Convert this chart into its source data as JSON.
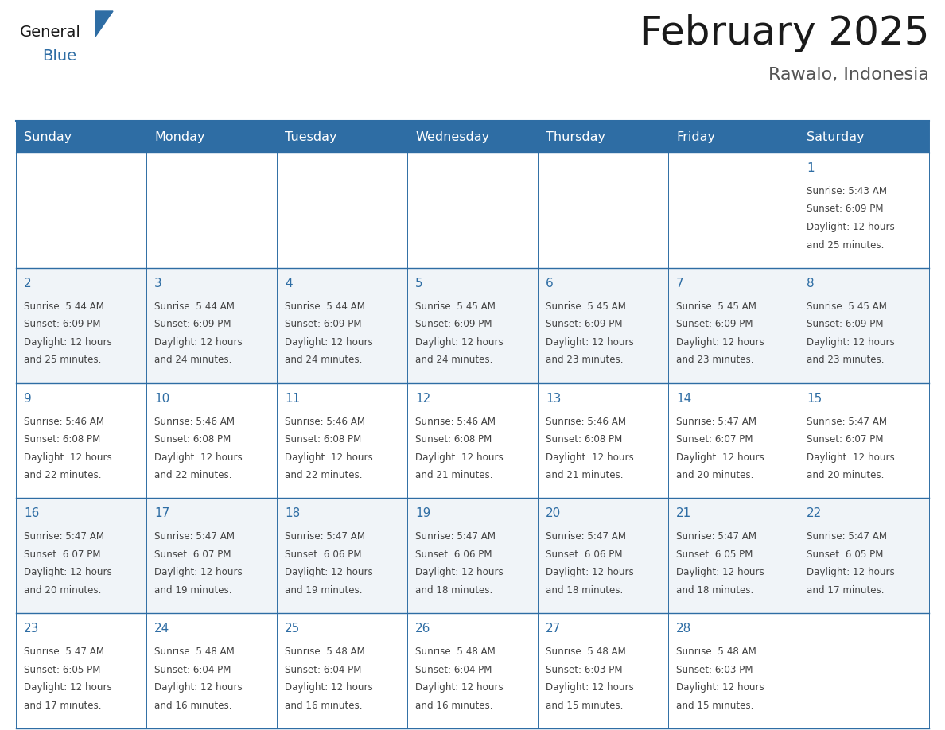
{
  "title": "February 2025",
  "subtitle": "Rawalo, Indonesia",
  "days_of_week": [
    "Sunday",
    "Monday",
    "Tuesday",
    "Wednesday",
    "Thursday",
    "Friday",
    "Saturday"
  ],
  "header_bg": "#2E6DA4",
  "header_text_color": "#FFFFFF",
  "cell_bg_light": "#F0F4F8",
  "cell_bg_white": "#FFFFFF",
  "border_color": "#2E6DA4",
  "day_number_color": "#2E6DA4",
  "text_color": "#444444",
  "title_color": "#1a1a1a",
  "subtitle_color": "#555555",
  "logo_general_color": "#1a1a1a",
  "logo_blue_color": "#2E6DA4",
  "calendar_data": [
    [
      null,
      null,
      null,
      null,
      null,
      null,
      {
        "day": 1,
        "sunrise": "5:43 AM",
        "sunset": "6:09 PM",
        "daylight_hours": "12 hours",
        "daylight_min": "and 25 minutes."
      }
    ],
    [
      {
        "day": 2,
        "sunrise": "5:44 AM",
        "sunset": "6:09 PM",
        "daylight_hours": "12 hours",
        "daylight_min": "and 25 minutes."
      },
      {
        "day": 3,
        "sunrise": "5:44 AM",
        "sunset": "6:09 PM",
        "daylight_hours": "12 hours",
        "daylight_min": "and 24 minutes."
      },
      {
        "day": 4,
        "sunrise": "5:44 AM",
        "sunset": "6:09 PM",
        "daylight_hours": "12 hours",
        "daylight_min": "and 24 minutes."
      },
      {
        "day": 5,
        "sunrise": "5:45 AM",
        "sunset": "6:09 PM",
        "daylight_hours": "12 hours",
        "daylight_min": "and 24 minutes."
      },
      {
        "day": 6,
        "sunrise": "5:45 AM",
        "sunset": "6:09 PM",
        "daylight_hours": "12 hours",
        "daylight_min": "and 23 minutes."
      },
      {
        "day": 7,
        "sunrise": "5:45 AM",
        "sunset": "6:09 PM",
        "daylight_hours": "12 hours",
        "daylight_min": "and 23 minutes."
      },
      {
        "day": 8,
        "sunrise": "5:45 AM",
        "sunset": "6:09 PM",
        "daylight_hours": "12 hours",
        "daylight_min": "and 23 minutes."
      }
    ],
    [
      {
        "day": 9,
        "sunrise": "5:46 AM",
        "sunset": "6:08 PM",
        "daylight_hours": "12 hours",
        "daylight_min": "and 22 minutes."
      },
      {
        "day": 10,
        "sunrise": "5:46 AM",
        "sunset": "6:08 PM",
        "daylight_hours": "12 hours",
        "daylight_min": "and 22 minutes."
      },
      {
        "day": 11,
        "sunrise": "5:46 AM",
        "sunset": "6:08 PM",
        "daylight_hours": "12 hours",
        "daylight_min": "and 22 minutes."
      },
      {
        "day": 12,
        "sunrise": "5:46 AM",
        "sunset": "6:08 PM",
        "daylight_hours": "12 hours",
        "daylight_min": "and 21 minutes."
      },
      {
        "day": 13,
        "sunrise": "5:46 AM",
        "sunset": "6:08 PM",
        "daylight_hours": "12 hours",
        "daylight_min": "and 21 minutes."
      },
      {
        "day": 14,
        "sunrise": "5:47 AM",
        "sunset": "6:07 PM",
        "daylight_hours": "12 hours",
        "daylight_min": "and 20 minutes."
      },
      {
        "day": 15,
        "sunrise": "5:47 AM",
        "sunset": "6:07 PM",
        "daylight_hours": "12 hours",
        "daylight_min": "and 20 minutes."
      }
    ],
    [
      {
        "day": 16,
        "sunrise": "5:47 AM",
        "sunset": "6:07 PM",
        "daylight_hours": "12 hours",
        "daylight_min": "and 20 minutes."
      },
      {
        "day": 17,
        "sunrise": "5:47 AM",
        "sunset": "6:07 PM",
        "daylight_hours": "12 hours",
        "daylight_min": "and 19 minutes."
      },
      {
        "day": 18,
        "sunrise": "5:47 AM",
        "sunset": "6:06 PM",
        "daylight_hours": "12 hours",
        "daylight_min": "and 19 minutes."
      },
      {
        "day": 19,
        "sunrise": "5:47 AM",
        "sunset": "6:06 PM",
        "daylight_hours": "12 hours",
        "daylight_min": "and 18 minutes."
      },
      {
        "day": 20,
        "sunrise": "5:47 AM",
        "sunset": "6:06 PM",
        "daylight_hours": "12 hours",
        "daylight_min": "and 18 minutes."
      },
      {
        "day": 21,
        "sunrise": "5:47 AM",
        "sunset": "6:05 PM",
        "daylight_hours": "12 hours",
        "daylight_min": "and 18 minutes."
      },
      {
        "day": 22,
        "sunrise": "5:47 AM",
        "sunset": "6:05 PM",
        "daylight_hours": "12 hours",
        "daylight_min": "and 17 minutes."
      }
    ],
    [
      {
        "day": 23,
        "sunrise": "5:47 AM",
        "sunset": "6:05 PM",
        "daylight_hours": "12 hours",
        "daylight_min": "and 17 minutes."
      },
      {
        "day": 24,
        "sunrise": "5:48 AM",
        "sunset": "6:04 PM",
        "daylight_hours": "12 hours",
        "daylight_min": "and 16 minutes."
      },
      {
        "day": 25,
        "sunrise": "5:48 AM",
        "sunset": "6:04 PM",
        "daylight_hours": "12 hours",
        "daylight_min": "and 16 minutes."
      },
      {
        "day": 26,
        "sunrise": "5:48 AM",
        "sunset": "6:04 PM",
        "daylight_hours": "12 hours",
        "daylight_min": "and 16 minutes."
      },
      {
        "day": 27,
        "sunrise": "5:48 AM",
        "sunset": "6:03 PM",
        "daylight_hours": "12 hours",
        "daylight_min": "and 15 minutes."
      },
      {
        "day": 28,
        "sunrise": "5:48 AM",
        "sunset": "6:03 PM",
        "daylight_hours": "12 hours",
        "daylight_min": "and 15 minutes."
      },
      null
    ]
  ],
  "num_rows": 5,
  "num_cols": 7,
  "row_bg_colors": [
    "#FFFFFF",
    "#F0F4F8",
    "#FFFFFF",
    "#F0F4F8",
    "#FFFFFF"
  ]
}
